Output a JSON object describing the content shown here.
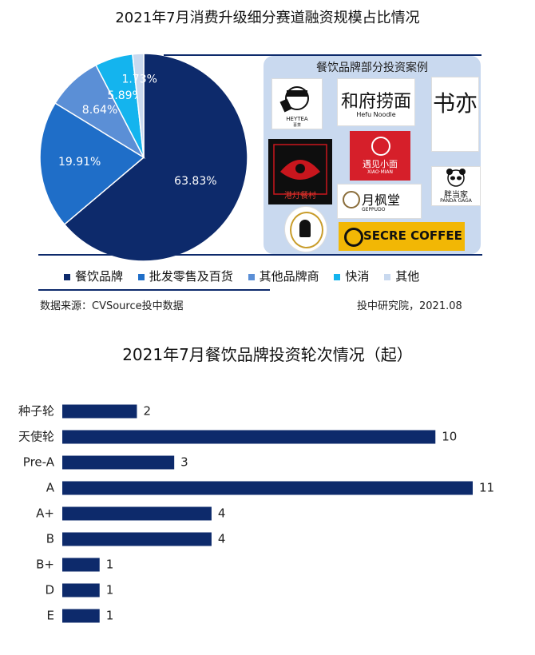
{
  "pie_title": "2021年7月消费升级细分赛道融资规模占比情况",
  "case_panel": {
    "title": "餐饮品牌部分投资案例",
    "logos": [
      {
        "name": "heytea",
        "text": "HEYTEA",
        "sub": "喜茶"
      },
      {
        "name": "hefu-noodle",
        "text": "和府捞面",
        "sub": "Hefu Noodle"
      },
      {
        "name": "shuwoe",
        "text": "书亦"
      },
      {
        "name": "gangtang",
        "text": "港灯餐村"
      },
      {
        "name": "xiaomian",
        "text": "遇见小面",
        "sub": "XIAO·MIAN"
      },
      {
        "name": "pandagaga",
        "text": "胖当家",
        "sub": "PANDA GAGA"
      },
      {
        "name": "geppudo",
        "text": "月枫堂",
        "sub": "GEPPUDO"
      },
      {
        "name": "secre-coffee",
        "text": "SECRE COFFEE"
      },
      {
        "name": "round-logo",
        "text": ""
      }
    ]
  },
  "source_left": "数据来源：CVSource投中数据",
  "source_right": "投中研究院，2021.08",
  "bar_title": "2021年7月餐饮品牌投资轮次情况（起）",
  "chart_data": [
    {
      "type": "pie",
      "title": "2021年7月消费升级细分赛道融资规模占比情况",
      "categories": [
        "餐饮品牌",
        "批发零售及百货",
        "其他品牌商",
        "快消",
        "其他"
      ],
      "values": [
        63.83,
        19.91,
        8.64,
        5.89,
        1.73
      ],
      "labels": [
        "63.83%",
        "19.91%",
        "8.64%",
        "5.89%",
        "1.73%"
      ],
      "colors": [
        "#0d2a6b",
        "#1f6ec8",
        "#5b8fd6",
        "#14b4ee",
        "#c9d9ef"
      ],
      "legend": "bottom"
    },
    {
      "type": "bar",
      "orientation": "horizontal",
      "title": "2021年7月餐饮品牌投资轮次情况（起）",
      "categories": [
        "种子轮",
        "天使轮",
        "Pre-A",
        "A",
        "A+",
        "B",
        "B+",
        "D",
        "E"
      ],
      "values": [
        2,
        10,
        3,
        11,
        4,
        4,
        1,
        1,
        1
      ],
      "color": "#0d2a6b",
      "xlim": [
        0,
        11
      ]
    }
  ]
}
